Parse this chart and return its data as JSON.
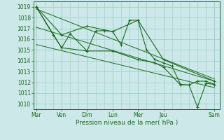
{
  "xlabel": "Pression niveau de la mer( hPa )",
  "ylim": [
    1009.5,
    1019.5
  ],
  "yticks": [
    1010,
    1011,
    1012,
    1013,
    1014,
    1015,
    1016,
    1017,
    1018,
    1019
  ],
  "background_color": "#cce8e8",
  "grid_color": "#99cccc",
  "line_color": "#1a6b1a",
  "day_labels": [
    "Mar",
    "Ven",
    "Dim",
    "Lun",
    "Mer",
    "Jeu",
    "Sam"
  ],
  "day_positions": [
    0,
    1.5,
    3,
    4.5,
    6,
    7.5,
    10.5
  ],
  "xlim": [
    -0.15,
    10.8
  ],
  "series1": {
    "x": [
      0,
      1.5,
      3.0,
      4.5,
      6.0,
      7.5,
      10.5
    ],
    "y": [
      1019.0,
      1016.4,
      1017.2,
      1016.7,
      1017.75,
      1014.1,
      1012.1
    ]
  },
  "series2": {
    "x": [
      0,
      1.0,
      1.5,
      2.0,
      3.0,
      3.5,
      4.0,
      4.5,
      5.0,
      5.5,
      6.0,
      6.5,
      7.0,
      7.5,
      8.0,
      8.5,
      9.0,
      9.5,
      10.0,
      10.5
    ],
    "y": [
      1019.0,
      1016.4,
      1015.2,
      1016.5,
      1014.9,
      1016.75,
      1016.8,
      1016.7,
      1015.5,
      1017.75,
      1017.75,
      1015.0,
      1014.1,
      1013.8,
      1013.5,
      1011.8,
      1011.75,
      1012.1,
      1012.1,
      1011.8
    ]
  },
  "series3": {
    "x": [
      0,
      1.5,
      3.0,
      4.5,
      6.0,
      7.0,
      7.5,
      8.5,
      9.0,
      9.5,
      10.0,
      10.5
    ],
    "y": [
      1019.0,
      1015.2,
      1014.9,
      1014.9,
      1014.1,
      1013.8,
      1013.4,
      1011.75,
      1011.75,
      1009.7,
      1011.9,
      1011.8
    ]
  },
  "trend1": {
    "x": [
      0,
      10.5
    ],
    "y": [
      1018.8,
      1012.3
    ]
  },
  "trend2": {
    "x": [
      0,
      10.5
    ],
    "y": [
      1017.1,
      1012.1
    ]
  },
  "trend3": {
    "x": [
      0,
      10.5
    ],
    "y": [
      1015.5,
      1011.5
    ]
  }
}
